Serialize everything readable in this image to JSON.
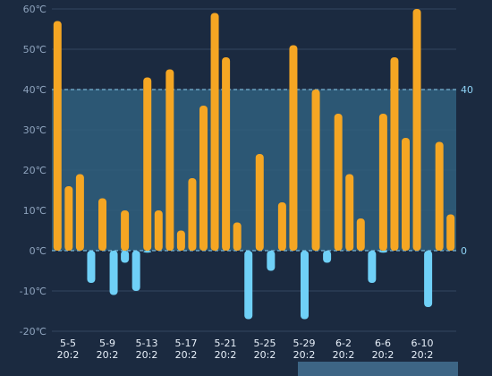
{
  "chart_data": {
    "type": "bar",
    "y_unit": "℃",
    "ylim": [
      -20,
      60
    ],
    "yticks": [
      60,
      50,
      40,
      30,
      20,
      10,
      0,
      -10,
      -20
    ],
    "ytick_labels": [
      "60℃",
      "50℃",
      "40℃",
      "30℃",
      "20℃",
      "10℃",
      "0℃",
      "-10℃",
      "-20℃"
    ],
    "grid": true,
    "mark_band": {
      "from": 0,
      "to": 40,
      "labels": [
        "40",
        "0"
      ]
    },
    "x_labels": [
      [
        "5-5",
        "20:2"
      ],
      [
        "5-9",
        "20:2"
      ],
      [
        "5-13",
        "20:2"
      ],
      [
        "5-17",
        "20:2"
      ],
      [
        "5-21",
        "20:2"
      ],
      [
        "5-25",
        "20:2"
      ],
      [
        "5-29",
        "20:2"
      ],
      [
        "6-2",
        "20:2"
      ],
      [
        "6-6",
        "20:2"
      ],
      [
        "6-10",
        "20:2"
      ]
    ],
    "series": [
      {
        "values": [
          57,
          16,
          19,
          0,
          13,
          0,
          10,
          0,
          43,
          10,
          45,
          5,
          18,
          36,
          59,
          48,
          7,
          0,
          24,
          0,
          12,
          51,
          0,
          40,
          0,
          34,
          19,
          8,
          0,
          34,
          48,
          28,
          60,
          0,
          27,
          9
        ]
      },
      {
        "values": [
          0,
          0,
          0,
          -8,
          0,
          -11,
          -3,
          -10,
          -0.5,
          0,
          0,
          0,
          0,
          0,
          0,
          0,
          0,
          -17,
          0,
          -5,
          0,
          0,
          -17,
          0,
          -3,
          0,
          0,
          0,
          -8,
          -0.5,
          0,
          0,
          0,
          -14,
          0,
          0
        ]
      }
    ],
    "colors": {
      "background": "#1b2a40",
      "positive": "#f5a623",
      "negative": "#6fd0f7",
      "mark_band": "#2f5f7e",
      "mark_line": "#8fd3f5",
      "grid": "#33465f",
      "zero_line": "#8fd3f5",
      "scrollbar": "#3d6585"
    },
    "data_zoom": {
      "start": 0.0,
      "end": 0.9
    }
  }
}
